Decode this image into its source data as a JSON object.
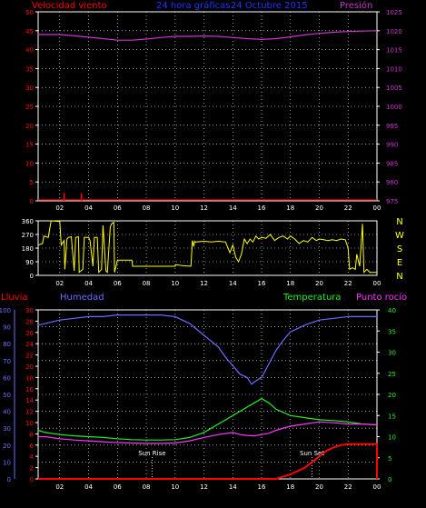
{
  "colors": {
    "background": "#000000",
    "frame": "#ffffff",
    "grid": "#ffffff",
    "wind_speed": "#ff0000",
    "pressure": "#cc33cc",
    "wind_dir": "#ffff00",
    "humidity": "#6b6bff",
    "rain": "#ff0000",
    "temperature": "#22ee22",
    "dew_point": "#ff33ff",
    "tick_label": "#ffffff"
  },
  "titles": {
    "wind": "Velocidad viento",
    "period": "24 hora gráficas",
    "date": "24 Octubre 2015",
    "pressure": "Presión",
    "rain": "Lluvia",
    "humidity": "Humedad",
    "temperature": "Temperatura",
    "dew_point": "Punto rocío",
    "sun_rise": "Sun Rise",
    "sun_set": "Sun Set"
  },
  "chart_data": [
    {
      "type": "line",
      "x_ticks": [
        "02",
        "04",
        "06",
        "08",
        "10",
        "12",
        "14",
        "16",
        "18",
        "20",
        "22",
        "00"
      ],
      "xlim": [
        0.5,
        24
      ],
      "y_left": {
        "label": "Velocidad viento",
        "ylim": [
          0,
          50
        ],
        "ticks": [
          0,
          5,
          10,
          15,
          20,
          25,
          30,
          35,
          40,
          45,
          50
        ]
      },
      "y_right": {
        "label": "Presión",
        "ylim": [
          975,
          1025
        ],
        "ticks": [
          975,
          980,
          985,
          990,
          995,
          1000,
          1005,
          1010,
          1015,
          1020,
          1025
        ]
      },
      "series": [
        {
          "name": "Presión",
          "axis": "right",
          "x": [
            0.5,
            2,
            4,
            5,
            6,
            7,
            8,
            9,
            10,
            11,
            12,
            13,
            14,
            15,
            16,
            17,
            18,
            19,
            20,
            21,
            22,
            23,
            24
          ],
          "values": [
            1019,
            1019,
            1018.3,
            1017.9,
            1017.5,
            1017.5,
            1017.8,
            1018.2,
            1018.5,
            1018.5,
            1018.6,
            1018.5,
            1018.2,
            1017.9,
            1017.7,
            1017.9,
            1018.4,
            1018.9,
            1019.3,
            1019.6,
            1019.8,
            1019.9,
            1020
          ]
        },
        {
          "name": "Velocidad viento",
          "axis": "left",
          "spikes": [
            {
              "x": 2.3,
              "value": 2
            },
            {
              "x": 3.5,
              "value": 2
            }
          ]
        }
      ],
      "grid": true
    },
    {
      "type": "line",
      "x_ticks": [
        "02",
        "04",
        "06",
        "08",
        "10",
        "12",
        "14",
        "16",
        "18",
        "20",
        "22",
        "00"
      ],
      "xlim": [
        0.5,
        24
      ],
      "y_left": {
        "ylim": [
          0,
          360
        ],
        "ticks": [
          0,
          90,
          180,
          270,
          360
        ]
      },
      "y_right_labels": [
        "N",
        "W",
        "S",
        "E",
        "N"
      ],
      "series": [
        {
          "name": "Dirección viento",
          "x": [
            0.5,
            0.8,
            0.9,
            1.2,
            1.4,
            2.0,
            2.1,
            2.3,
            2.35,
            2.5,
            2.6,
            2.8,
            3.0,
            3.1,
            3.3,
            3.35,
            3.6,
            3.7,
            4.0,
            4.1,
            4.3,
            4.4,
            4.6,
            4.7,
            4.9,
            5.0,
            5.2,
            5.3,
            5.5,
            5.6,
            5.75,
            5.8,
            6.0,
            7.0,
            7.05,
            10.0,
            10.05,
            10.5,
            11.1,
            11.2,
            11.3,
            11.35,
            11.4,
            12.0,
            12.5,
            13.0,
            13.5,
            13.8,
            14.0,
            14.2,
            14.4,
            14.6,
            14.8,
            15.0,
            15.2,
            15.4,
            15.6,
            15.8,
            16.0,
            16.3,
            16.6,
            16.9,
            17.2,
            17.5,
            17.8,
            18.0,
            18.3,
            18.6,
            18.9,
            19.2,
            19.5,
            19.8,
            20.0,
            20.3,
            20.6,
            20.9,
            21.2,
            21.5,
            21.8,
            22.0,
            22.1,
            22.3,
            22.5,
            22.6,
            22.8,
            23.0,
            23.1,
            23.3,
            23.5,
            24.0
          ],
          "values": [
            200,
            210,
            260,
            250,
            360,
            355,
            200,
            230,
            40,
            240,
            250,
            255,
            30,
            250,
            255,
            20,
            40,
            250,
            250,
            230,
            60,
            250,
            250,
            20,
            40,
            330,
            30,
            20,
            320,
            340,
            350,
            20,
            100,
            100,
            60,
            60,
            70,
            65,
            60,
            230,
            190,
            225,
            220,
            225,
            220,
            225,
            220,
            150,
            200,
            120,
            90,
            140,
            240,
            210,
            240,
            220,
            260,
            240,
            250,
            245,
            270,
            230,
            250,
            260,
            240,
            260,
            240,
            210,
            230,
            220,
            250,
            230,
            240,
            235,
            230,
            235,
            230,
            240,
            235,
            180,
            40,
            50,
            40,
            140,
            60,
            340,
            20,
            40,
            20,
            20
          ]
        }
      ],
      "grid": true
    },
    {
      "type": "line",
      "x_ticks": [
        "02",
        "04",
        "06",
        "08",
        "10",
        "12",
        "14",
        "16",
        "18",
        "20",
        "22",
        "00"
      ],
      "xlim": [
        0.5,
        24
      ],
      "y_far_left": {
        "label": "Humedad",
        "ylim": [
          0,
          100
        ],
        "ticks": [
          0,
          10,
          20,
          30,
          40,
          50,
          60,
          70,
          80,
          90,
          100
        ]
      },
      "y_left": {
        "label": "Lluvia",
        "ylim": [
          0,
          30
        ],
        "ticks": [
          0,
          2,
          4,
          6,
          8,
          10,
          12,
          14,
          16,
          18,
          20,
          22,
          24,
          26,
          28,
          30
        ]
      },
      "y_right": {
        "label": "Temperatura",
        "ylim": [
          0,
          40
        ],
        "ticks": [
          0,
          5,
          10,
          15,
          20,
          25,
          30,
          35,
          40
        ]
      },
      "annotations": [
        {
          "text": "Sun Rise",
          "x": 8.4
        },
        {
          "text": "Sun Set",
          "x": 19.5
        }
      ],
      "series": [
        {
          "name": "Humedad",
          "axis": "far_left",
          "x": [
            0.5,
            1.0,
            2.0,
            3.0,
            4.0,
            5.0,
            6.0,
            7.0,
            8.0,
            9.0,
            10.0,
            11.0,
            12.0,
            13.0,
            13.5,
            14.0,
            14.5,
            15.0,
            15.3,
            15.6,
            16.0,
            16.5,
            17.0,
            17.5,
            18.0,
            19.0,
            20.0,
            21.0,
            22.0,
            23.0,
            24.0
          ],
          "values": [
            91,
            92,
            94,
            95,
            96,
            96,
            97,
            97,
            97,
            97,
            96,
            92,
            85,
            78,
            72,
            67,
            62,
            60,
            56,
            58,
            60,
            68,
            76,
            82,
            87,
            91,
            94,
            95,
            96,
            96,
            96
          ]
        },
        {
          "name": "Lluvia",
          "axis": "left",
          "x": [
            0.5,
            17.0,
            18.0,
            19.0,
            20.0,
            20.5,
            21.0,
            21.5,
            22.0,
            23.2,
            24.0,
            24.0
          ],
          "values": [
            0,
            0,
            0.8,
            2.0,
            4.0,
            5.0,
            5.6,
            6.0,
            6.2,
            6.2,
            6.2,
            0
          ]
        },
        {
          "name": "Temperatura",
          "axis": "right",
          "x": [
            0.5,
            1.0,
            2.0,
            3.0,
            4.0,
            5.0,
            6.0,
            7.0,
            8.0,
            9.0,
            10.0,
            11.0,
            12.0,
            13.0,
            14.0,
            15.0,
            15.5,
            16.0,
            16.5,
            17.0,
            18.0,
            19.0,
            20.0,
            21.0,
            22.0,
            23.0,
            24.0
          ],
          "values": [
            11.5,
            11.0,
            10.5,
            10.2,
            10.0,
            9.8,
            9.5,
            9.3,
            9.2,
            9.2,
            9.3,
            9.8,
            11.0,
            13.0,
            15.0,
            17.0,
            18.0,
            19.0,
            18.0,
            16.5,
            15.0,
            14.5,
            14.0,
            13.8,
            13.5,
            13.0,
            12.8
          ]
        },
        {
          "name": "Punto rocío",
          "axis": "right",
          "x": [
            0.5,
            1.0,
            2.0,
            3.0,
            4.0,
            5.0,
            6.0,
            7.0,
            8.0,
            9.0,
            10.0,
            11.0,
            12.0,
            13.0,
            14.0,
            14.5,
            15.0,
            15.5,
            16.0,
            16.5,
            17.0,
            18.0,
            19.0,
            20.0,
            21.0,
            22.0,
            23.0,
            24.0
          ],
          "values": [
            10.0,
            10.0,
            9.5,
            9.2,
            9.0,
            8.8,
            8.6,
            8.5,
            8.4,
            8.4,
            8.5,
            9.0,
            9.8,
            10.5,
            11.0,
            10.5,
            10.3,
            10.2,
            10.5,
            10.8,
            11.5,
            12.5,
            13.0,
            13.5,
            13.3,
            13.0,
            13.0,
            12.8
          ]
        }
      ],
      "grid": true
    }
  ]
}
